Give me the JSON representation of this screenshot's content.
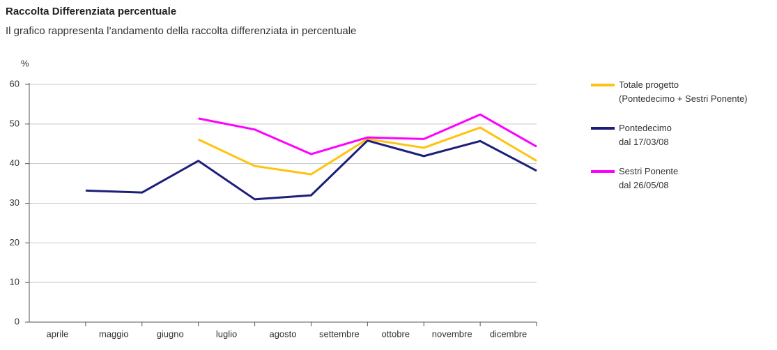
{
  "chart_data": {
    "type": "line",
    "title": "Raccolta Differenziata percentuale",
    "subtitle": "Il grafico rappresenta l’andamento della raccolta differenziata in percentuale",
    "y_label": "%",
    "categories": [
      "aprile",
      "maggio",
      "giugno",
      "luglio",
      "agosto",
      "settembre",
      "ottobre",
      "novembre",
      "dicembre"
    ],
    "series": [
      {
        "name": "Totale progetto\n(Pontedecimo + Sestri Ponente)",
        "color": "#ffc20e",
        "values": [
          null,
          null,
          46.1,
          39.4,
          37.3,
          46.2,
          44,
          49.1,
          40.7
        ]
      },
      {
        "name": "Pontedecimo\ndal 17/03/08",
        "color": "#1b1f7a",
        "values": [
          33.2,
          32.7,
          40.7,
          31,
          32,
          45.8,
          41.9,
          45.7,
          38.2
        ]
      },
      {
        "name": "Sestri Ponente\ndal 26/05/08",
        "color": "#ff00ff",
        "values": [
          null,
          null,
          51.4,
          48.6,
          42.4,
          46.6,
          46.2,
          52.4,
          44.3
        ]
      }
    ],
    "ylim": [
      0,
      60
    ],
    "yticks": [
      0,
      10,
      20,
      30,
      40,
      50,
      60
    ],
    "grid": true
  }
}
